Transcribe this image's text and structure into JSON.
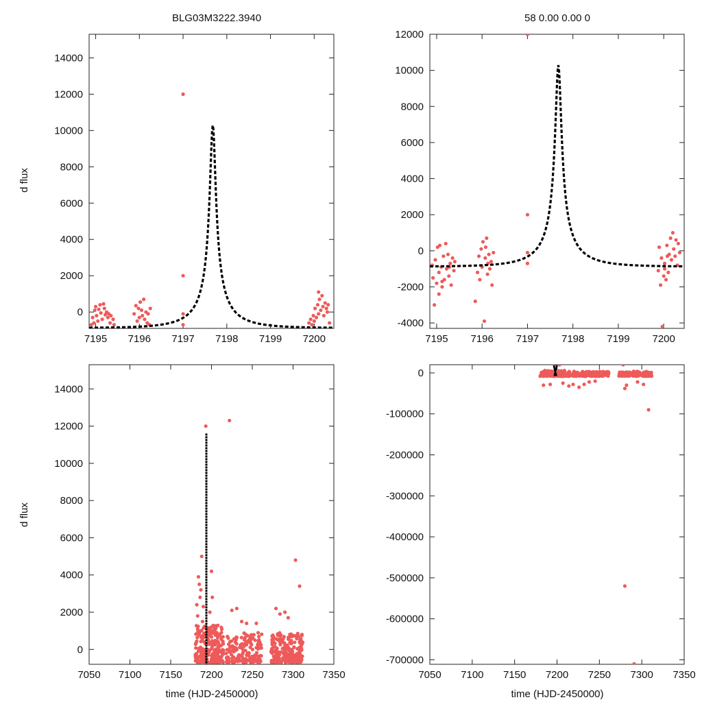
{
  "figure": {
    "title_left": "BLG03M3222.3940",
    "title_right": "58  0.00  0.00  0",
    "ylabel": "d flux",
    "xlabel": "time (HJD-2450000)"
  },
  "colors": {
    "points": "#ee5a5a",
    "model": "#000000",
    "axes": "#222222"
  },
  "chart_data": [
    {
      "type": "scatter",
      "panel": "top-left",
      "title": "BLG03M3222.3940",
      "xlabel": "",
      "ylabel": "d flux",
      "xlim": [
        7194.85,
        7200.45
      ],
      "ylim": [
        -900,
        15300
      ],
      "xticks": [
        7195,
        7196,
        7197,
        7198,
        7199,
        7200
      ],
      "yticks": [
        0,
        2000,
        4000,
        6000,
        8000,
        10000,
        12000,
        14000
      ],
      "model": {
        "t0": 7197.68,
        "u0": 0.0685,
        "tE": 0.98,
        "fs": 820,
        "base": -880
      },
      "series": [
        {
          "name": "data",
          "points": [
            [
              7194.9,
              -700
            ],
            [
              7194.93,
              -300
            ],
            [
              7194.96,
              -600
            ],
            [
              7194.98,
              100
            ],
            [
              7195.0,
              300
            ],
            [
              7195.02,
              -200
            ],
            [
              7195.05,
              -500
            ],
            [
              7195.07,
              150
            ],
            [
              7195.1,
              400
            ],
            [
              7195.12,
              -50
            ],
            [
              7195.15,
              -400
            ],
            [
              7195.18,
              450
            ],
            [
              7195.2,
              200
            ],
            [
              7195.22,
              -150
            ],
            [
              7195.25,
              0
            ],
            [
              7195.28,
              -300
            ],
            [
              7195.3,
              -100
            ],
            [
              7195.33,
              -600
            ],
            [
              7195.35,
              -200
            ],
            [
              7195.4,
              -400
            ],
            [
              7195.42,
              -700
            ],
            [
              7195.88,
              -100
            ],
            [
              7195.92,
              350
            ],
            [
              7195.95,
              -500
            ],
            [
              7195.98,
              200
            ],
            [
              7196.0,
              -300
            ],
            [
              7196.02,
              550
            ],
            [
              7196.05,
              100
            ],
            [
              7196.07,
              -200
            ],
            [
              7196.1,
              700
            ],
            [
              7196.12,
              -400
            ],
            [
              7196.15,
              0
            ],
            [
              7196.18,
              -600
            ],
            [
              7196.2,
              -100
            ],
            [
              7196.23,
              -700
            ],
            [
              7196.25,
              200
            ],
            [
              7197.0,
              12000
            ],
            [
              7197.0,
              2000
            ],
            [
              7197.0,
              -100
            ],
            [
              7197.0,
              -700
            ],
            [
              7199.88,
              -600
            ],
            [
              7199.92,
              -400
            ],
            [
              7199.95,
              -700
            ],
            [
              7199.98,
              -200
            ],
            [
              7200.0,
              -500
            ],
            [
              7200.02,
              200
            ],
            [
              7200.05,
              -300
            ],
            [
              7200.08,
              400
            ],
            [
              7200.1,
              -100
            ],
            [
              7200.12,
              700
            ],
            [
              7200.15,
              100
            ],
            [
              7200.18,
              900
            ],
            [
              7200.2,
              300
            ],
            [
              7200.22,
              -200
            ],
            [
              7200.25,
              500
            ],
            [
              7200.28,
              200
            ],
            [
              7200.3,
              0
            ],
            [
              7200.32,
              400
            ],
            [
              7200.35,
              -600
            ],
            [
              7200.1,
              1100
            ]
          ]
        }
      ]
    },
    {
      "type": "scatter",
      "panel": "top-right",
      "title": "58  0.00  0.00  0",
      "xlabel": "",
      "ylabel": "",
      "xlim": [
        7194.85,
        7200.45
      ],
      "ylim": [
        -4300,
        12000
      ],
      "xticks": [
        7195,
        7196,
        7197,
        7198,
        7199,
        7200
      ],
      "yticks": [
        -4000,
        -2000,
        0,
        2000,
        4000,
        6000,
        8000,
        10000,
        12000
      ],
      "model": {
        "t0": 7197.68,
        "u0": 0.0685,
        "tE": 0.98,
        "fs": 820,
        "base": -880
      },
      "series": [
        {
          "name": "data",
          "points": [
            [
              7194.9,
              -800
            ],
            [
              7194.92,
              -1500
            ],
            [
              7194.95,
              -3000
            ],
            [
              7194.97,
              -500
            ],
            [
              7195.0,
              -1800
            ],
            [
              7195.02,
              200
            ],
            [
              7195.05,
              -1200
            ],
            [
              7195.07,
              300
            ],
            [
              7195.1,
              -900
            ],
            [
              7195.12,
              -2000
            ],
            [
              7195.15,
              -300
            ],
            [
              7195.17,
              -1600
            ],
            [
              7195.2,
              400
            ],
            [
              7195.22,
              -1000
            ],
            [
              7195.25,
              -200
            ],
            [
              7195.27,
              -1400
            ],
            [
              7195.3,
              -700
            ],
            [
              7195.32,
              -1900
            ],
            [
              7195.35,
              -400
            ],
            [
              7195.38,
              -1100
            ],
            [
              7195.4,
              -600
            ],
            [
              7195.05,
              -2400
            ],
            [
              7195.12,
              -1700
            ],
            [
              7195.28,
              -900
            ],
            [
              7195.85,
              -2800
            ],
            [
              7195.9,
              -1200
            ],
            [
              7195.93,
              -300
            ],
            [
              7195.95,
              -1600
            ],
            [
              7195.98,
              100
            ],
            [
              7196.0,
              -900
            ],
            [
              7196.02,
              500
            ],
            [
              7196.05,
              -3900
            ],
            [
              7196.07,
              -400
            ],
            [
              7196.1,
              700
            ],
            [
              7196.12,
              -1300
            ],
            [
              7196.15,
              -200
            ],
            [
              7196.17,
              -1000
            ],
            [
              7196.2,
              -600
            ],
            [
              7196.22,
              -1900
            ],
            [
              7196.25,
              -100
            ],
            [
              7196.08,
              200
            ],
            [
              7196.13,
              -700
            ],
            [
              7197.0,
              12000
            ],
            [
              7197.0,
              2000
            ],
            [
              7197.0,
              -100
            ],
            [
              7197.0,
              -700
            ],
            [
              7199.88,
              -1100
            ],
            [
              7199.9,
              200
            ],
            [
              7199.93,
              -1900
            ],
            [
              7199.95,
              -400
            ],
            [
              7199.97,
              -4200
            ],
            [
              7200.0,
              -1400
            ],
            [
              7200.02,
              -700
            ],
            [
              7200.05,
              -1600
            ],
            [
              7200.07,
              300
            ],
            [
              7200.1,
              -1200
            ],
            [
              7200.12,
              -200
            ],
            [
              7200.15,
              700
            ],
            [
              7200.17,
              -500
            ],
            [
              7200.2,
              1000
            ],
            [
              7200.22,
              100
            ],
            [
              7200.25,
              -300
            ],
            [
              7200.27,
              600
            ],
            [
              7200.3,
              -800
            ],
            [
              7200.32,
              400
            ],
            [
              7200.35,
              -100
            ],
            [
              7200.02,
              -1000
            ],
            [
              7200.08,
              -300
            ]
          ]
        }
      ]
    },
    {
      "type": "scatter",
      "panel": "bottom-left",
      "title": "",
      "xlabel": "time (HJD-2450000)",
      "ylabel": "d flux",
      "xlim": [
        7050,
        7350
      ],
      "ylim": [
        -800,
        15300
      ],
      "xticks": [
        7050,
        7100,
        7150,
        7200,
        7250,
        7300,
        7350
      ],
      "yticks": [
        0,
        2000,
        4000,
        6000,
        8000,
        10000,
        12000,
        14000
      ],
      "model": {
        "t0": 7193.7,
        "line_top": 11600,
        "line_bottom": -800
      },
      "point_clusters": [
        {
          "x_range": [
            7180,
            7215
          ],
          "y_range": [
            -700,
            1300
          ],
          "count": 260
        },
        {
          "x_range": [
            7218,
            7262
          ],
          "y_range": [
            -700,
            900
          ],
          "count": 170
        },
        {
          "x_range": [
            7273,
            7312
          ],
          "y_range": [
            -700,
            900
          ],
          "count": 230
        }
      ],
      "series": [
        {
          "name": "data",
          "points": [
            [
              7193,
              12000
            ],
            [
              7222,
              12300
            ],
            [
              7188,
              5000
            ],
            [
              7184,
              3900
            ],
            [
              7185,
              3500
            ],
            [
              7186,
              2800
            ],
            [
              7187,
              3200
            ],
            [
              7190,
              2300
            ],
            [
              7182,
              2400
            ],
            [
              7183,
              1800
            ],
            [
              7189,
              1500
            ],
            [
              7200,
              4200
            ],
            [
              7201,
              2800
            ],
            [
              7198,
              2000
            ],
            [
              7225,
              2100
            ],
            [
              7231,
              2200
            ],
            [
              7237,
              1500
            ],
            [
              7243,
              1400
            ],
            [
              7255,
              1400
            ],
            [
              7279,
              2200
            ],
            [
              7284,
              1900
            ],
            [
              7290,
              2000
            ],
            [
              7294,
              1700
            ],
            [
              7303,
              4800
            ],
            [
              7308,
              3400
            ]
          ]
        }
      ]
    },
    {
      "type": "scatter",
      "panel": "bottom-right",
      "title": "",
      "xlabel": "time (HJD-2450000)",
      "ylabel": "",
      "xlim": [
        7050,
        7350
      ],
      "ylim": [
        -711000,
        20000
      ],
      "xticks": [
        7050,
        7100,
        7150,
        7200,
        7250,
        7300,
        7350
      ],
      "yticks": [
        -700000,
        -600000,
        -500000,
        -400000,
        -300000,
        -200000,
        -100000,
        0
      ],
      "model": {
        "t0": 7197.68,
        "segment_top": 11600,
        "segment_bottom": -800
      },
      "point_clusters": [
        {
          "x_range": [
            7180,
            7215
          ],
          "y_range": [
            -8000,
            6000
          ],
          "count": 140
        },
        {
          "x_range": [
            7218,
            7262
          ],
          "y_range": [
            -8000,
            4000
          ],
          "count": 110
        },
        {
          "x_range": [
            7273,
            7312
          ],
          "y_range": [
            -8000,
            4000
          ],
          "count": 120
        }
      ],
      "series": [
        {
          "name": "data",
          "points": [
            [
              7184,
              -30000
            ],
            [
              7192,
              -28000
            ],
            [
              7198,
              15000
            ],
            [
              7203,
              20000
            ],
            [
              7207,
              -25000
            ],
            [
              7214,
              -32000
            ],
            [
              7219,
              -28000
            ],
            [
              7226,
              -35000
            ],
            [
              7232,
              -28000
            ],
            [
              7238,
              -22000
            ],
            [
              7245,
              -20000
            ],
            [
              7278,
              20000
            ],
            [
              7280,
              -38000
            ],
            [
              7282,
              -30000
            ],
            [
              7295,
              -22000
            ],
            [
              7302,
              -28000
            ],
            [
              7308,
              -90000
            ],
            [
              7280,
              -520000
            ],
            [
              7291,
              -710000
            ]
          ]
        }
      ]
    }
  ]
}
